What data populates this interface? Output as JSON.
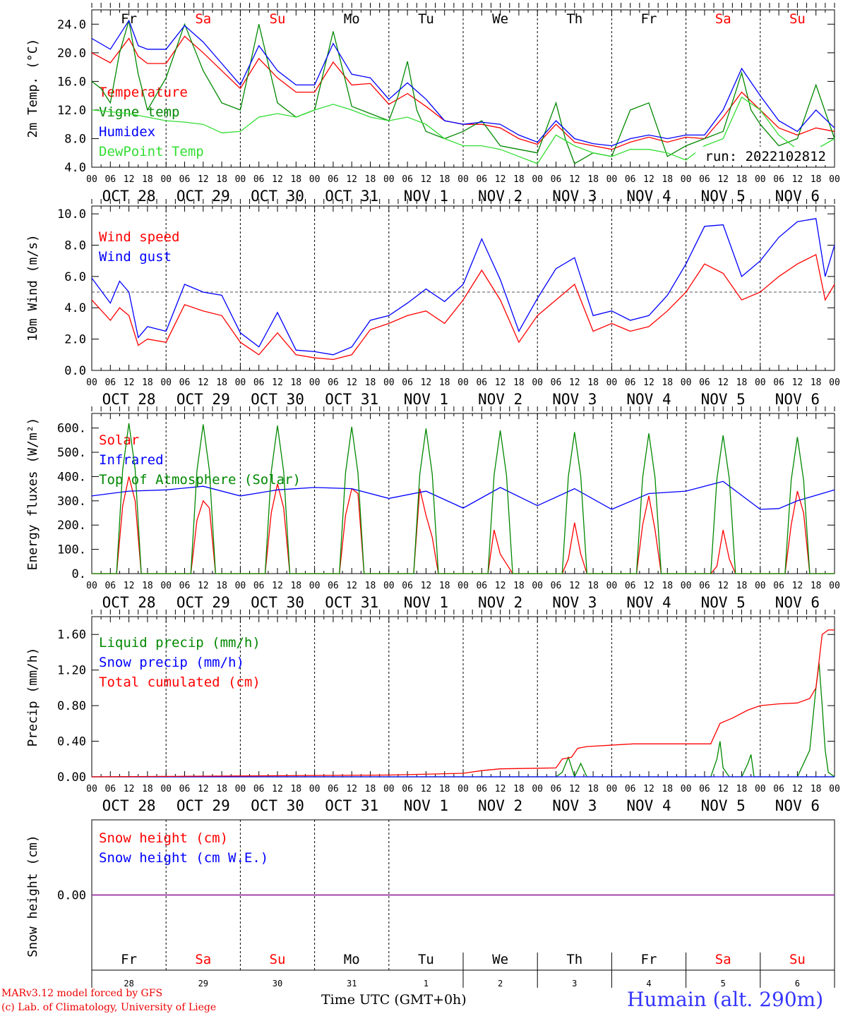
{
  "day_labels": [
    "Fr",
    "Sa",
    "Su",
    "Mo",
    "Tu",
    "We",
    "Th",
    "Fr",
    "Sa",
    "Su"
  ],
  "day_colors": [
    "#000000",
    "#ff0000",
    "#ff0000",
    "#000000",
    "#000000",
    "#000000",
    "#000000",
    "#000000",
    "#ff0000",
    "#ff0000"
  ],
  "date_labels": [
    "OCT 28",
    "OCT 29",
    "OCT 30",
    "OCT 31",
    "NOV  1",
    "NOV  2",
    "NOV  3",
    "NOV  4",
    "NOV  5",
    "NOV  6"
  ],
  "hour_ticks": [
    "00",
    "06",
    "12",
    "18"
  ],
  "final_hour": "00",
  "bottom_days": [
    "28",
    "29",
    "30",
    "31",
    "1",
    "2",
    "3",
    "4",
    "5",
    "6"
  ],
  "month_label": "NOV",
  "footer": {
    "credit_line1": "MARv3.12 model forced by GFS",
    "credit_line2": "(c) Lab. of Climatology, University of Liege",
    "xlabel": "Time UTC (GMT+0h)",
    "station": "Humain (alt. 290m)"
  },
  "chart_data": [
    {
      "type": "line",
      "ylabel": "2m Temp. (°C)",
      "ylim": [
        4.0,
        26.0
      ],
      "yticks": [
        "4.0",
        "8.0",
        "12.0",
        "16.0",
        "20.0",
        "24.0"
      ],
      "annotation": "run: 2022102812",
      "x_unit": "hours since OCT 28 00 UTC",
      "series": [
        {
          "name": "Temperature",
          "color": "#ff0000",
          "x": [
            0,
            6,
            12,
            15,
            18,
            24,
            30,
            36,
            42,
            48,
            54,
            60,
            66,
            72,
            78,
            84,
            90,
            96,
            102,
            108,
            114,
            120,
            126,
            132,
            138,
            144,
            150,
            156,
            162,
            168,
            174,
            180,
            186,
            192,
            198,
            204,
            210,
            216,
            222,
            228,
            234,
            240
          ],
          "y": [
            20.0,
            18.6,
            22.0,
            19.5,
            18.5,
            18.5,
            22.3,
            20.0,
            17.5,
            15.0,
            19.2,
            16.5,
            14.5,
            14.5,
            18.7,
            15.5,
            15.7,
            12.8,
            14.3,
            12.5,
            10.5,
            10.0,
            10.0,
            9.5,
            8.0,
            7.2,
            10.0,
            7.5,
            7.0,
            6.5,
            7.5,
            8.2,
            7.5,
            8.2,
            8.0,
            11.0,
            14.5,
            12.0,
            9.5,
            8.5,
            9.5,
            9.0
          ]
        },
        {
          "name": "Vigne temp",
          "color": "#008800",
          "x": [
            0,
            3,
            6,
            9,
            12,
            15,
            18,
            24,
            30,
            36,
            42,
            48,
            54,
            60,
            66,
            72,
            78,
            84,
            90,
            96,
            99,
            102,
            105,
            108,
            114,
            120,
            126,
            132,
            138,
            144,
            150,
            153,
            156,
            162,
            168,
            174,
            180,
            186,
            192,
            198,
            204,
            210,
            213,
            216,
            222,
            228,
            234,
            240
          ],
          "y": [
            16.0,
            15.0,
            13.0,
            20.0,
            24.5,
            17.0,
            12.0,
            16.5,
            24.0,
            17.5,
            13.0,
            12.0,
            24.0,
            13.0,
            11.0,
            12.0,
            23.0,
            12.5,
            11.5,
            10.5,
            14.0,
            18.8,
            12.0,
            9.0,
            8.0,
            9.0,
            10.5,
            7.0,
            6.5,
            6.0,
            13.0,
            8.0,
            4.5,
            6.0,
            5.5,
            12.0,
            13.0,
            5.5,
            7.0,
            8.0,
            9.0,
            17.2,
            12.0,
            10.0,
            7.0,
            8.0,
            15.5,
            8.0
          ]
        },
        {
          "name": "Humidex",
          "color": "#0000ff",
          "x": [
            0,
            6,
            12,
            15,
            18,
            24,
            30,
            36,
            42,
            48,
            54,
            60,
            66,
            72,
            78,
            84,
            90,
            96,
            102,
            108,
            114,
            120,
            126,
            132,
            138,
            144,
            150,
            156,
            162,
            168,
            174,
            180,
            186,
            192,
            198,
            204,
            210,
            216,
            222,
            228,
            234,
            240
          ],
          "y": [
            22.0,
            20.5,
            24.5,
            21.0,
            20.5,
            20.5,
            23.8,
            21.5,
            18.5,
            15.5,
            21.0,
            17.5,
            15.5,
            15.5,
            21.3,
            17.0,
            16.5,
            13.5,
            15.8,
            13.5,
            10.5,
            10.0,
            10.3,
            10.0,
            8.5,
            7.5,
            10.5,
            8.0,
            7.3,
            7.0,
            8.0,
            8.5,
            8.0,
            8.5,
            8.5,
            12.0,
            17.8,
            14.0,
            10.5,
            9.0,
            12.0,
            9.5
          ]
        },
        {
          "name": "DewPoint Temp",
          "color": "#33dd33",
          "x": [
            0,
            12,
            24,
            30,
            36,
            42,
            48,
            54,
            60,
            66,
            72,
            78,
            84,
            90,
            96,
            102,
            108,
            114,
            120,
            126,
            132,
            138,
            144,
            150,
            156,
            162,
            168,
            174,
            180,
            186,
            192,
            198,
            204,
            210,
            216,
            222,
            228,
            234,
            240
          ],
          "y": [
            12.0,
            11.5,
            10.5,
            10.3,
            10.0,
            8.8,
            9.0,
            11.0,
            11.5,
            11.0,
            12.0,
            12.8,
            12.0,
            11.0,
            10.5,
            11.0,
            10.0,
            8.0,
            7.0,
            7.0,
            6.5,
            5.5,
            4.5,
            8.5,
            7.0,
            6.0,
            5.5,
            6.5,
            6.5,
            6.0,
            5.0,
            7.0,
            8.0,
            13.8,
            12.0,
            8.5,
            6.5,
            6.5,
            8.0
          ]
        }
      ]
    },
    {
      "type": "line",
      "ylabel": "10m Wind (m/s)",
      "ylim": [
        0.0,
        10.0
      ],
      "yticks": [
        "0.0",
        "2.0",
        "4.0",
        "6.0",
        "8.0",
        "10.0"
      ],
      "reference_line": 5.0,
      "series": [
        {
          "name": "Wind speed",
          "color": "#ff0000",
          "x": [
            0,
            6,
            9,
            12,
            15,
            18,
            24,
            30,
            36,
            42,
            48,
            54,
            60,
            66,
            72,
            78,
            84,
            90,
            96,
            102,
            108,
            114,
            120,
            126,
            132,
            138,
            144,
            150,
            156,
            162,
            168,
            174,
            180,
            186,
            192,
            198,
            204,
            210,
            216,
            222,
            228,
            234,
            237,
            240
          ],
          "y": [
            4.5,
            3.2,
            4.0,
            3.5,
            1.6,
            2.0,
            1.8,
            4.2,
            3.8,
            3.5,
            1.8,
            1.0,
            2.4,
            1.0,
            0.8,
            0.7,
            1.0,
            2.6,
            3.0,
            3.5,
            3.8,
            3.0,
            4.5,
            6.4,
            4.5,
            1.8,
            3.5,
            4.5,
            5.5,
            2.5,
            3.0,
            2.5,
            2.8,
            3.8,
            5.0,
            6.8,
            6.2,
            4.5,
            5.0,
            6.0,
            6.8,
            7.4,
            4.5,
            5.5
          ]
        },
        {
          "name": "Wind gust",
          "color": "#0000ff",
          "x": [
            0,
            6,
            9,
            12,
            15,
            18,
            24,
            30,
            36,
            42,
            48,
            54,
            60,
            66,
            72,
            78,
            84,
            90,
            96,
            102,
            108,
            114,
            120,
            126,
            132,
            138,
            144,
            150,
            156,
            162,
            168,
            174,
            180,
            186,
            192,
            198,
            204,
            210,
            216,
            222,
            228,
            234,
            237,
            240
          ],
          "y": [
            5.9,
            4.3,
            5.7,
            5.0,
            2.1,
            2.8,
            2.5,
            5.5,
            5.0,
            4.8,
            2.4,
            1.5,
            3.7,
            1.3,
            1.2,
            1.0,
            1.5,
            3.2,
            3.5,
            4.3,
            5.2,
            4.4,
            5.5,
            8.4,
            5.8,
            2.5,
            4.6,
            6.5,
            7.2,
            3.5,
            3.8,
            3.2,
            3.5,
            4.8,
            6.8,
            9.2,
            9.3,
            6.0,
            7.0,
            8.5,
            9.5,
            9.7,
            6.0,
            8.0
          ]
        }
      ]
    },
    {
      "type": "line",
      "ylabel": "Energy fluxes (W/m²)",
      "ylim": [
        0,
        660
      ],
      "yticks": [
        "0.",
        "100.",
        "200.",
        "300.",
        "400.",
        "500.",
        "600."
      ],
      "series": [
        {
          "name": "Solar",
          "color": "#ff0000",
          "x": [
            0,
            8,
            10,
            12,
            14,
            16,
            24,
            32,
            34,
            36,
            38,
            40,
            48,
            56,
            58,
            60,
            62,
            64,
            72,
            80,
            82,
            84,
            86,
            88,
            96,
            104,
            106,
            108,
            110,
            112,
            120,
            128,
            130,
            132,
            134,
            136,
            144,
            152,
            154,
            156,
            158,
            160,
            168,
            176,
            178,
            180,
            182,
            184,
            192,
            200,
            202,
            204,
            206,
            208,
            216,
            224,
            226,
            228,
            230,
            232,
            240
          ],
          "y": [
            0,
            0,
            280,
            400,
            300,
            0,
            0,
            0,
            220,
            300,
            270,
            0,
            0,
            0,
            250,
            370,
            270,
            0,
            0,
            0,
            240,
            350,
            330,
            0,
            0,
            0,
            350,
            240,
            150,
            0,
            0,
            0,
            180,
            80,
            40,
            0,
            0,
            0,
            60,
            210,
            80,
            0,
            0,
            0,
            200,
            320,
            180,
            0,
            0,
            0,
            30,
            180,
            60,
            0,
            0,
            0,
            200,
            340,
            250,
            0,
            0
          ]
        },
        {
          "name": "Infrared",
          "color": "#0000ff",
          "x": [
            0,
            12,
            24,
            36,
            48,
            60,
            72,
            84,
            96,
            108,
            120,
            132,
            144,
            156,
            168,
            180,
            192,
            204,
            216,
            222,
            228,
            240
          ],
          "y": [
            320,
            340,
            345,
            360,
            320,
            345,
            355,
            350,
            310,
            340,
            270,
            355,
            280,
            350,
            265,
            330,
            340,
            380,
            265,
            268,
            300,
            345
          ]
        },
        {
          "name": "Top of Atmosphere (Solar)",
          "color": "#008800",
          "x": [
            0,
            8,
            10,
            12,
            14,
            16,
            24,
            32,
            34,
            36,
            38,
            40,
            48,
            56,
            58,
            60,
            62,
            64,
            72,
            80,
            82,
            84,
            86,
            88,
            96,
            104,
            106,
            108,
            110,
            112,
            120,
            128,
            130,
            132,
            134,
            136,
            144,
            152,
            154,
            156,
            158,
            160,
            168,
            176,
            178,
            180,
            182,
            184,
            192,
            200,
            202,
            204,
            206,
            208,
            216,
            224,
            226,
            228,
            230,
            232,
            240
          ],
          "y": [
            0,
            0,
            430,
            620,
            430,
            0,
            0,
            0,
            425,
            615,
            425,
            0,
            0,
            0,
            420,
            610,
            420,
            0,
            0,
            0,
            415,
            605,
            415,
            0,
            0,
            0,
            410,
            598,
            410,
            0,
            0,
            0,
            405,
            590,
            405,
            0,
            0,
            0,
            400,
            583,
            400,
            0,
            0,
            0,
            395,
            578,
            395,
            0,
            0,
            0,
            390,
            570,
            390,
            0,
            0,
            0,
            385,
            563,
            385,
            0,
            0
          ]
        }
      ]
    },
    {
      "type": "line",
      "ylabel": "Precip (mm/h)",
      "ylim": [
        0.0,
        1.8
      ],
      "yticks": [
        "0.00",
        "0.40",
        "0.80",
        "1.20",
        "1.60"
      ],
      "series": [
        {
          "name": "Liquid precip (mm/h)",
          "color": "#008800",
          "x": [
            0,
            150,
            152,
            154,
            156,
            158,
            160,
            200,
            202,
            203,
            204,
            206,
            210,
            212,
            213,
            214,
            240
          ],
          "y": [
            0,
            0,
            0.05,
            0.22,
            0.0,
            0.15,
            0.0,
            0.0,
            0.2,
            0.4,
            0.1,
            0.0,
            0.0,
            0.15,
            0.25,
            0.0,
            0.0
          ],
          "x2": [
            228,
            232,
            234,
            235,
            236,
            237,
            238,
            240
          ],
          "y2": [
            0,
            0.3,
            1.0,
            1.28,
            0.8,
            0.3,
            0.05,
            0
          ]
        },
        {
          "name": "Snow precip (mm/h)",
          "color": "#0000ff",
          "x": [
            0,
            240
          ],
          "y": [
            0,
            0
          ]
        },
        {
          "name": "Total cumulated (cm)",
          "color": "#ff0000",
          "x": [
            0,
            96,
            120,
            126,
            132,
            150,
            152,
            155,
            157,
            160,
            175,
            200,
            203,
            207,
            212,
            216,
            222,
            228,
            232,
            234,
            236,
            238,
            240
          ],
          "y": [
            0.0,
            0.02,
            0.04,
            0.07,
            0.09,
            0.1,
            0.2,
            0.22,
            0.32,
            0.34,
            0.37,
            0.37,
            0.6,
            0.66,
            0.75,
            0.8,
            0.82,
            0.83,
            0.88,
            1.0,
            1.6,
            1.65,
            1.65
          ]
        }
      ]
    },
    {
      "type": "line",
      "ylabel": "Snow height (cm)",
      "yticks": [
        "0.00"
      ],
      "series": [
        {
          "name": "Snow height (cm)",
          "color": "#ff0000",
          "x": [
            0,
            240
          ],
          "y": [
            0,
            0
          ]
        },
        {
          "name": "Snow height (cm W.E.)",
          "color": "#0000ff",
          "x": [
            0,
            240
          ],
          "y": [
            0,
            0
          ]
        }
      ]
    }
  ]
}
